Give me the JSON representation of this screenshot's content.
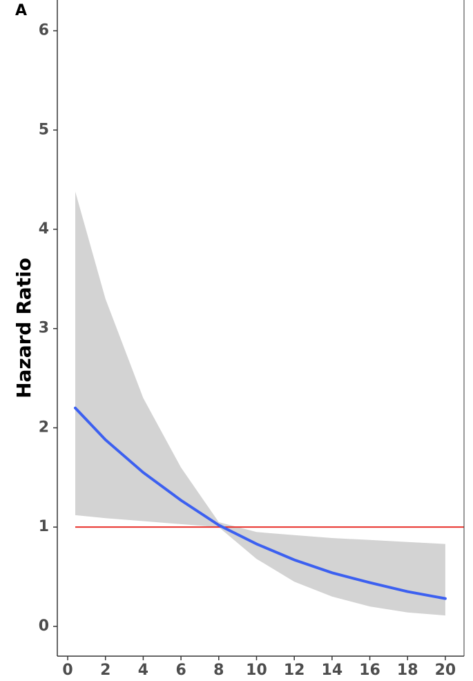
{
  "chart_data": {
    "type": "line",
    "panel_label": "A",
    "ylabel": "Hazard Ratio",
    "x": [
      0.4,
      2,
      4,
      6,
      8,
      10,
      12,
      14,
      16,
      18,
      20
    ],
    "series": [
      {
        "color": "#3c60f0",
        "values": [
          2.2,
          1.88,
          1.55,
          1.27,
          1.02,
          0.83,
          0.67,
          0.54,
          0.44,
          0.35,
          0.28
        ]
      }
    ],
    "band": {
      "color": "#d3d3d3",
      "upper": [
        4.38,
        3.3,
        2.3,
        1.6,
        1.05,
        0.95,
        0.92,
        0.89,
        0.87,
        0.85,
        0.83
      ],
      "lower": [
        1.12,
        1.09,
        1.06,
        1.03,
        1.0,
        0.68,
        0.45,
        0.3,
        0.2,
        0.14,
        0.11
      ]
    },
    "hline": {
      "value": 1,
      "color": "#e8302a"
    },
    "xlim": [
      -0.55,
      20.99
    ],
    "ylim": [
      -0.3,
      6.31
    ],
    "xticks": [
      0,
      2,
      4,
      6,
      8,
      10,
      12,
      14,
      16,
      18,
      20
    ],
    "yticks": [
      0,
      1,
      2,
      3,
      4,
      5,
      6
    ]
  }
}
